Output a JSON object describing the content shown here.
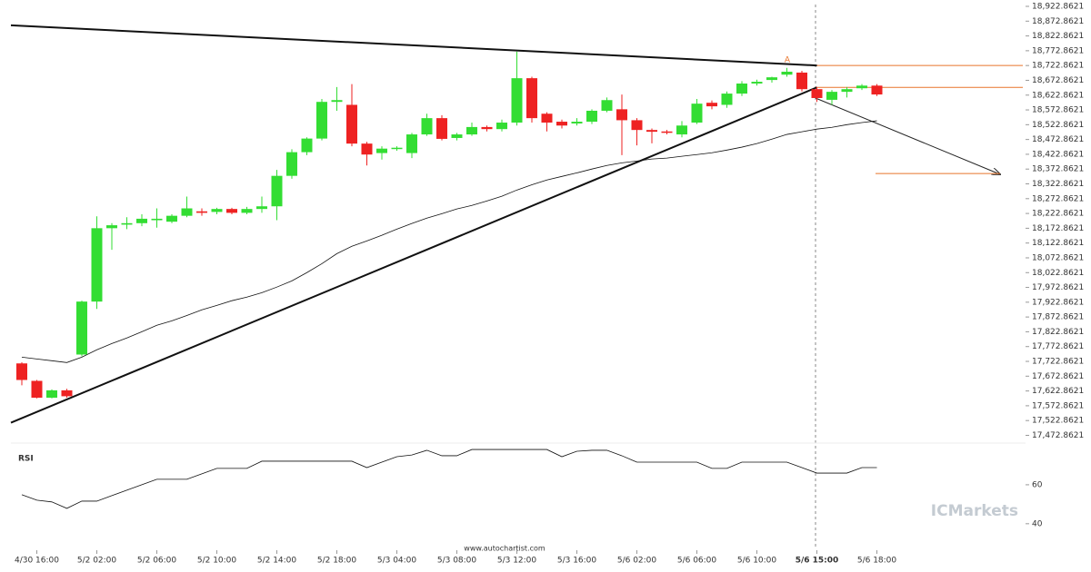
{
  "chart_data": {
    "type": "candlestick",
    "source": "www.autochartist.com",
    "watermark": "ICMarkets",
    "pattern_label": "A",
    "rsi_label": "RSI",
    "up_color": "#33dd33",
    "down_color": "#ee2222",
    "level_color": "#e8742a",
    "categories": [
      null,
      "4/30 16:00",
      null,
      null,
      null,
      "5/2 02:00",
      null,
      null,
      null,
      "5/2 06:00",
      null,
      null,
      null,
      "5/2 10:00",
      null,
      null,
      null,
      "5/2 14:00",
      null,
      null,
      null,
      "5/2 18:00",
      null,
      null,
      null,
      "5/3 04:00",
      null,
      null,
      null,
      "5/3 08:00",
      null,
      null,
      null,
      "5/3 12:00",
      null,
      null,
      null,
      "5/3 16:00",
      null,
      null,
      null,
      "5/6 02:00",
      null,
      null,
      null,
      "5/6 06:00",
      null,
      null,
      null,
      "5/6 10:00",
      null,
      null,
      null,
      "5/6 15:00",
      null,
      null,
      null,
      "5/6 18:00"
    ],
    "open": [
      17716,
      17657,
      17600,
      17625,
      17746,
      17925,
      18173,
      18185,
      18190,
      18200,
      18195,
      18215,
      18230,
      18228,
      18238,
      18225,
      18238,
      18247,
      18350,
      18430,
      18476,
      18600,
      18590,
      18459,
      18427,
      18442,
      18427,
      18490,
      18545,
      18478,
      18490,
      18515,
      18508,
      18530,
      18680,
      18560,
      18533,
      18527,
      18533,
      18570,
      18575,
      18538,
      18505,
      18500,
      18490,
      18530,
      18597,
      18590,
      18628,
      18662,
      18674,
      18692,
      18699,
      18643,
      18607,
      18634,
      18646,
      18655
    ],
    "high": [
      17720,
      17660,
      17628,
      17630,
      17928,
      18213,
      18190,
      18210,
      18220,
      18240,
      18220,
      18280,
      18240,
      18242,
      18242,
      18245,
      18280,
      18370,
      18440,
      18480,
      18610,
      18650,
      18660,
      18465,
      18450,
      18450,
      18495,
      18560,
      18555,
      18495,
      18530,
      18520,
      18540,
      18770,
      18685,
      18565,
      18540,
      18545,
      18575,
      18615,
      18625,
      18545,
      18510,
      18505,
      18535,
      18610,
      18605,
      18635,
      18670,
      18675,
      18685,
      18715,
      18705,
      18650,
      18640,
      18650,
      18660,
      18660
    ],
    "low": [
      17642,
      17598,
      17598,
      17600,
      17740,
      17900,
      18100,
      18170,
      18180,
      18175,
      18190,
      18210,
      18215,
      18220,
      18220,
      18220,
      18225,
      18200,
      18340,
      18420,
      18470,
      18570,
      18450,
      18385,
      18405,
      18435,
      18410,
      18485,
      18470,
      18470,
      18485,
      18500,
      18500,
      18520,
      18530,
      18500,
      18510,
      18520,
      18525,
      18565,
      18420,
      18453,
      18460,
      18490,
      18480,
      18525,
      18575,
      18580,
      18620,
      18655,
      18665,
      18685,
      18635,
      18600,
      18590,
      18615,
      18640,
      18620
    ],
    "close": [
      17660,
      17600,
      17625,
      17605,
      17925,
      18173,
      18183,
      18190,
      18205,
      18205,
      18215,
      18240,
      18225,
      18238,
      18225,
      18238,
      18247,
      18350,
      18430,
      18476,
      18600,
      18606,
      18459,
      18422,
      18442,
      18445,
      18490,
      18545,
      18475,
      18490,
      18515,
      18508,
      18530,
      18680,
      18545,
      18530,
      18520,
      18533,
      18570,
      18606,
      18538,
      18505,
      18499,
      18497,
      18520,
      18594,
      18585,
      18628,
      18662,
      18668,
      18683,
      18702,
      18643,
      18613,
      18634,
      18643,
      18655,
      18625
    ],
    "moving_average": [
      17737,
      17731,
      17725,
      17719,
      17737,
      17762,
      17783,
      17802,
      17823,
      17845,
      17860,
      17878,
      17897,
      17912,
      17928,
      17940,
      17955,
      17974,
      17995,
      18023,
      18053,
      18087,
      18112,
      18130,
      18149,
      18170,
      18189,
      18207,
      18222,
      18238,
      18250,
      18265,
      18281,
      18302,
      18320,
      18336,
      18348,
      18360,
      18373,
      18385,
      18394,
      18400,
      18407,
      18410,
      18416,
      18422,
      18428,
      18437,
      18447,
      18459,
      18474,
      18490,
      18499,
      18508,
      18514,
      18523,
      18530,
      18536
    ],
    "rsi": [
      54.9,
      52.1,
      51.2,
      47.9,
      51.6,
      51.6,
      54.4,
      57.2,
      60,
      62.8,
      62.8,
      62.8,
      65.6,
      68.4,
      68.4,
      68.4,
      72.1,
      72.1,
      72.1,
      72.1,
      72.1,
      72.1,
      72.1,
      68.8,
      71.6,
      74.4,
      75.3,
      77.7,
      74.9,
      74.9,
      78.1,
      78.1,
      78.1,
      78.1,
      78.1,
      78.1,
      74.4,
      77.2,
      77.7,
      77.7,
      74.9,
      71.6,
      71.6,
      71.6,
      71.6,
      71.6,
      68.4,
      68.4,
      71.6,
      71.6,
      71.6,
      71.6,
      68.8,
      66,
      66,
      66,
      68.8,
      68.8
    ],
    "trend_lines": [
      {
        "x": [
          0,
          53
        ],
        "values": [
          18857,
          18723
        ]
      },
      {
        "x": [
          0,
          53
        ],
        "values": [
          17531,
          18649
        ]
      }
    ],
    "levels": [
      18723,
      18649,
      18358
    ],
    "ylim": [
      17452.8621,
      18944.3621
    ],
    "yticks": [
      {
        "value": 18922.8621,
        "label": "18,922.8621"
      },
      {
        "value": 18872.8621,
        "label": "18,872.8621"
      },
      {
        "value": 18822.8621,
        "label": "18,822.8621"
      },
      {
        "value": 18772.8621,
        "label": "18,772.8621"
      },
      {
        "value": 18722.8621,
        "label": "18,722.8621"
      },
      {
        "value": 18672.8621,
        "label": "18,672.8621"
      },
      {
        "value": 18622.8621,
        "label": "18,622.8621"
      },
      {
        "value": 18572.8621,
        "label": "18,572.8621"
      },
      {
        "value": 18522.8621,
        "label": "18,522.8621"
      },
      {
        "value": 18472.8621,
        "label": "18,472.8621"
      },
      {
        "value": 18422.8621,
        "label": "18,422.8621"
      },
      {
        "value": 18372.8621,
        "label": "18,372.8621"
      },
      {
        "value": 18322.8621,
        "label": "18,322.8621"
      },
      {
        "value": 18272.8621,
        "label": "18,272.8621"
      },
      {
        "value": 18222.8621,
        "label": "18,222.8621"
      },
      {
        "value": 18172.8621,
        "label": "18,172.8621"
      },
      {
        "value": 18122.8621,
        "label": "18,122.8621"
      },
      {
        "value": 18072.8621,
        "label": "18,072.8621"
      },
      {
        "value": 18022.8621,
        "label": "18,022.8621"
      },
      {
        "value": 17972.8621,
        "label": "17,972.8621"
      },
      {
        "value": 17922.8621,
        "label": "17,922.8621"
      },
      {
        "value": 17872.8621,
        "label": "17,872.8621"
      },
      {
        "value": 17822.8621,
        "label": "17,822.8621"
      },
      {
        "value": 17772.8621,
        "label": "17,772.8621"
      },
      {
        "value": 17722.8621,
        "label": "17,722.8621"
      },
      {
        "value": 17672.8621,
        "label": "17,672.8621"
      },
      {
        "value": 17622.8621,
        "label": "17,622.8621"
      },
      {
        "value": 17572.8621,
        "label": "17,572.8621"
      },
      {
        "value": 17522.8621,
        "label": "17,522.8621"
      },
      {
        "value": 17472.8621,
        "label": "17,472.8621"
      }
    ],
    "y2lim": [
      32,
      80
    ],
    "y2ticks": [
      60,
      40
    ]
  }
}
